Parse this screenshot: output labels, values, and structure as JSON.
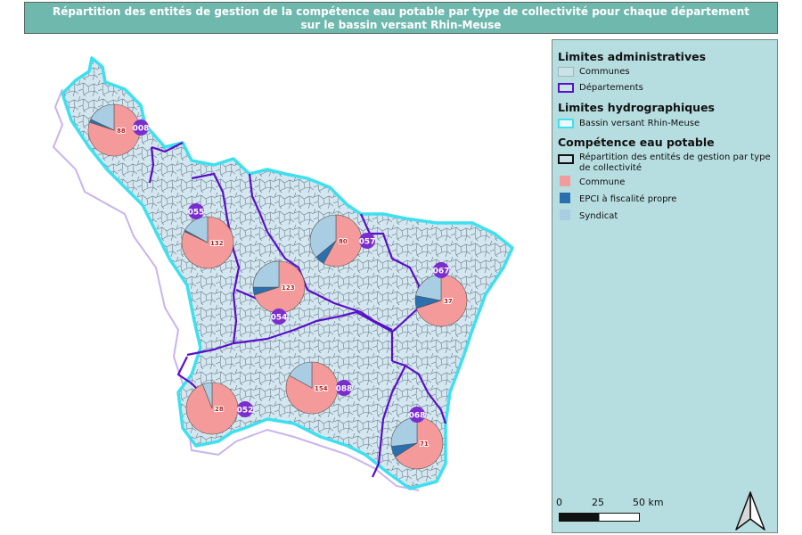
{
  "title": {
    "line1": "Répartition des entités de gestion de la compétence eau potable par type de collectivité pour chaque département",
    "line2": "sur le bassin versant Rhin-Meuse"
  },
  "colors": {
    "commune": "#f59a9a",
    "epci": "#2a6fae",
    "syndicat": "#a9cde3",
    "departement_border": "#5a0fc8",
    "bassin_border": "#3ee0ef",
    "communes_fill": "#d4e7f1",
    "dept_badge": "#7a2ccf",
    "legend_bg": "#b6dde0",
    "title_bg": "#6fb8ae"
  },
  "legend": {
    "section1": "Limites administratives",
    "communes": "Communes",
    "departements": "Départements",
    "section2": "Limites hydrographiques",
    "bassin": "Bassin versant Rhin-Meuse",
    "section3": "Compétence eau potable",
    "repartition": "Répartition des entités de gestion par type de collectivité",
    "commune": "Commune",
    "epci": "EPCI à fiscalité propre",
    "syndicat": "Syndicat"
  },
  "scalebar": {
    "labels": [
      "0",
      "25",
      "50 km"
    ]
  },
  "north_arrow": "north-arrow-icon",
  "departments": [
    {
      "code": "008",
      "label": "88",
      "commune": 0.8,
      "epci": 0.02,
      "syndicat": 0.18
    },
    {
      "code": "055",
      "label": "132",
      "commune": 0.82,
      "epci": 0.01,
      "syndicat": 0.17
    },
    {
      "code": "057",
      "label": "80",
      "commune": 0.58,
      "epci": 0.06,
      "syndicat": 0.36
    },
    {
      "code": "054",
      "label": "123",
      "commune": 0.7,
      "epci": 0.05,
      "syndicat": 0.25
    },
    {
      "code": "067",
      "label": "37",
      "commune": 0.7,
      "epci": 0.08,
      "syndicat": 0.22
    },
    {
      "code": "052",
      "label": "28",
      "commune": 0.94,
      "epci": 0.0,
      "syndicat": 0.06
    },
    {
      "code": "088",
      "label": "154",
      "commune": 0.83,
      "epci": 0.0,
      "syndicat": 0.17
    },
    {
      "code": "068",
      "label": "71",
      "commune": 0.66,
      "epci": 0.07,
      "syndicat": 0.27
    }
  ]
}
